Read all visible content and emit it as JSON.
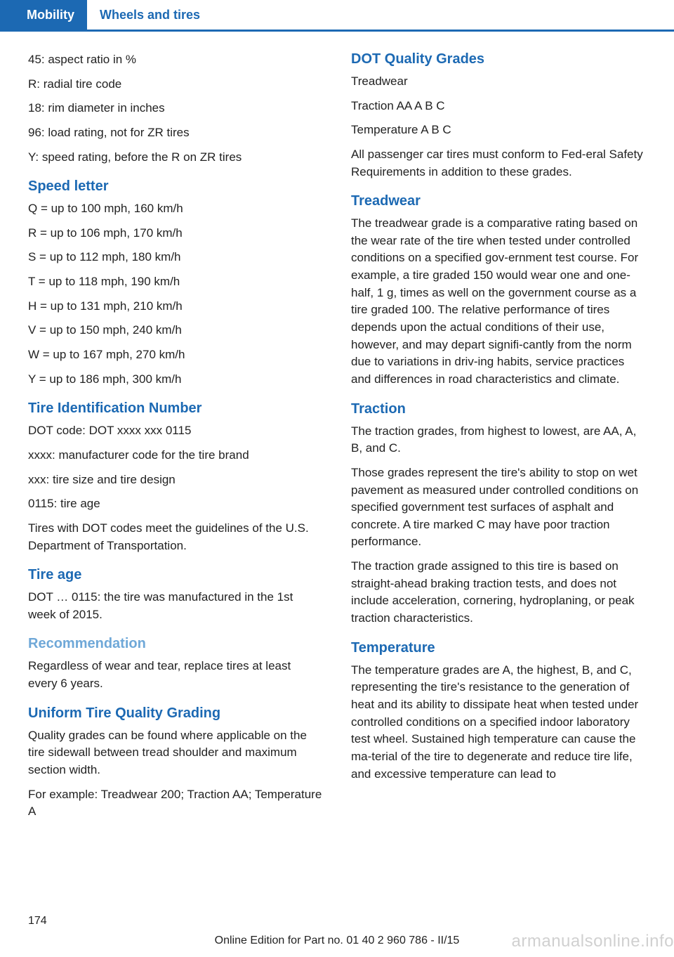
{
  "header": {
    "tab1": "Mobility",
    "tab2": "Wheels and tires",
    "accent_color": "#1c69b3",
    "light_accent": "#6fa8d8"
  },
  "left": {
    "intro": [
      "45: aspect ratio in %",
      "R: radial tire code",
      "18: rim diameter in inches",
      "96: load rating, not for ZR tires",
      "Y: speed rating, before the R on ZR tires"
    ],
    "speed_letter": {
      "title": "Speed letter",
      "lines": [
        "Q = up to 100 mph, 160 km/h",
        "R = up to 106 mph, 170 km/h",
        "S = up to 112 mph, 180 km/h",
        "T = up to 118 mph, 190 km/h",
        "H = up to 131 mph, 210 km/h",
        "V = up to 150 mph, 240 km/h",
        "W = up to 167 mph, 270 km/h",
        "Y = up to 186 mph, 300 km/h"
      ]
    },
    "tin": {
      "title": "Tire Identification Number",
      "lines": [
        "DOT code: DOT xxxx xxx 0115",
        "xxxx: manufacturer code for the tire brand",
        "xxx: tire size and tire design",
        "0115: tire age",
        "Tires with DOT codes meet the guidelines of the U.S. Department of Transportation."
      ]
    },
    "tire_age": {
      "title": "Tire age",
      "text": "DOT … 0115: the tire was manufactured in the 1st week of 2015."
    },
    "recommendation": {
      "title": "Recommendation",
      "text": "Regardless of wear and tear, replace tires at least every 6 years."
    },
    "utqg": {
      "title": "Uniform Tire Quality Grading",
      "p1": "Quality grades can be found where applicable on the tire sidewall between tread shoulder and maximum section width.",
      "p2": "For example: Treadwear 200; Traction AA; Temperature A"
    }
  },
  "right": {
    "dot": {
      "title": "DOT Quality Grades",
      "lines": [
        "Treadwear",
        "Traction AA A B C",
        "Temperature A B C",
        "All passenger car tires must conform to Fed‐eral Safety Requirements in addition to these grades."
      ]
    },
    "treadwear": {
      "title": "Treadwear",
      "text": "The treadwear grade is a comparative rating based on the wear rate of the tire when tested under controlled conditions on a specified gov‐ernment test course. For example, a tire graded 150 would wear one and one-half, 1 g, times as well on the government course as a tire graded 100. The relative performance of tires depends upon the actual conditions of their use, however, and may depart signifi‐cantly from the norm due to variations in driv‐ing habits, service practices and differences in road characteristics and climate."
    },
    "traction": {
      "title": "Traction",
      "p1": "The traction grades, from highest to lowest, are AA, A, B, and C.",
      "p2": "Those grades represent the tire's ability to stop on wet pavement as measured under controlled conditions on specified government test surfaces of asphalt and concrete. A tire marked C may have poor traction performance.",
      "p3": "The traction grade assigned to this tire is based on straight-ahead braking traction tests, and does not include acceleration, cornering, hydroplaning, or peak traction characteristics."
    },
    "temperature": {
      "title": "Temperature",
      "text": "The temperature grades are A, the highest, B, and C, representing the tire's resistance to the generation of heat and its ability to dissipate heat when tested under controlled conditions on a specified indoor laboratory test wheel. Sustained high temperature can cause the ma‐terial of the tire to degenerate and reduce tire life, and excessive temperature can lead to"
    }
  },
  "page_number": "174",
  "footer": "Online Edition for Part no. 01 40 2 960 786 - II/15",
  "watermark": "armanualsonline.info"
}
